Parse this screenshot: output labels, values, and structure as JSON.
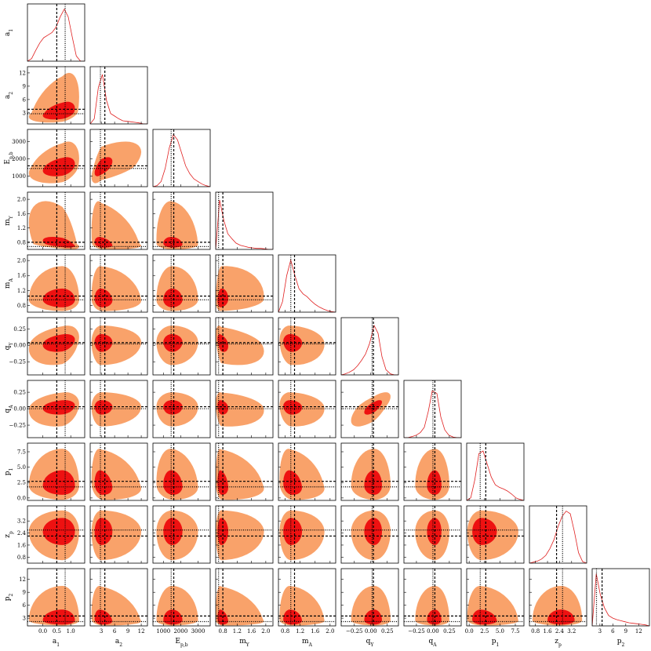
{
  "chart_data": {
    "type": "corner",
    "colors": {
      "outer": "#f9a26a",
      "inner": "#ee1111",
      "curve": "#e02020"
    },
    "params": [
      {
        "label": {
          "text": "a",
          "sub": "1"
        },
        "lim": [
          -0.55,
          1.5
        ],
        "ticks": [
          {
            "value": 0.0,
            "label": "0.0"
          },
          0.5,
          {
            "value": 1.0,
            "label": "1.0"
          }
        ],
        "ref_dashed": 0.5,
        "ref_dotted": 0.8,
        "center": 0.7,
        "inner": [
          0.7,
          0.45
        ],
        "outer": [
          1.2,
          0.6
        ],
        "pdf_x": [
          -0.55,
          -0.4,
          -0.26,
          -0.11,
          0.03,
          0.18,
          0.33,
          0.47,
          0.62,
          0.77,
          0.91,
          1.06,
          1.2,
          1.35,
          1.5
        ],
        "pdf": [
          0,
          0.05,
          0.2,
          0.35,
          0.45,
          0.5,
          0.55,
          0.65,
          0.85,
          1.0,
          0.85,
          0.45,
          0.1,
          0,
          0
        ]
      },
      {
        "label": {
          "text": "a",
          "sub": "2"
        },
        "lim": [
          0.5,
          13.4
        ],
        "ticks": [
          3,
          6,
          9,
          12
        ],
        "ref_dashed": 3.8,
        "ref_dotted": 2.8,
        "center": 3,
        "inner": [
          1.5,
          2.5
        ],
        "outer": [
          2.2,
          9
        ],
        "pdf_x": [
          0.5,
          1.42,
          2.34,
          3.26,
          4.18,
          5.1,
          6.02,
          6.94,
          7.86,
          8.78,
          9.7,
          10.6,
          11.5,
          12.5,
          13.4
        ],
        "pdf": [
          0,
          0.1,
          0.7,
          0.95,
          0.45,
          0.2,
          0.15,
          0.1,
          0.06,
          0.05,
          0.04,
          0.03,
          0.02,
          0,
          0
        ]
      },
      {
        "label": {
          "text": "E",
          "sub": "p,b"
        },
        "lim": [
          400,
          3700
        ],
        "ticks": [
          1000,
          2000,
          3000
        ],
        "ref_dashed": 1600,
        "ref_dotted": 1450,
        "center": 1500,
        "inner": [
          500,
          600
        ],
        "outer": [
          900,
          1500
        ],
        "pdf_x": [
          400,
          636,
          871,
          1107,
          1343,
          1579,
          1814,
          2050,
          2286,
          2521,
          2757,
          2993,
          3229,
          3464,
          3700
        ],
        "pdf": [
          0,
          0.02,
          0.1,
          0.35,
          0.75,
          1.0,
          0.9,
          0.65,
          0.4,
          0.25,
          0.15,
          0.1,
          0.05,
          0.02,
          0
        ]
      },
      {
        "label": {
          "text": "m",
          "sub": "Y"
        },
        "lim": [
          0.6,
          2.2
        ],
        "ticks": [
          0.8,
          1.2,
          1.6,
          {
            "value": 2.0,
            "label": "2.0"
          }
        ],
        "ref_dashed": 0.8,
        "ref_dotted": 0.68,
        "center": 0.75,
        "inner": [
          0.1,
          0.2
        ],
        "outer": [
          0.15,
          1.2
        ],
        "pdf_x": [
          0.6,
          0.71,
          0.83,
          0.94,
          1.06,
          1.17,
          1.29,
          1.4,
          1.51,
          1.63,
          1.74,
          1.86,
          1.97,
          2.09,
          2.2
        ],
        "pdf": [
          0,
          0.95,
          0.55,
          0.3,
          0.2,
          0.12,
          0.08,
          0.06,
          0.04,
          0.03,
          0.02,
          0.02,
          0.01,
          0,
          0
        ]
      },
      {
        "label": {
          "text": "m",
          "sub": "A"
        },
        "lim": [
          0.62,
          2.15
        ],
        "ticks": [
          0.8,
          1.2,
          1.6,
          {
            "value": 2.0,
            "label": "2.0"
          }
        ],
        "ref_dashed": 1.05,
        "ref_dotted": 0.95,
        "center": 0.95,
        "inner": [
          0.2,
          0.3
        ],
        "outer": [
          0.3,
          0.9
        ],
        "pdf_x": [
          0.62,
          0.73,
          0.84,
          0.95,
          1.06,
          1.17,
          1.28,
          1.38,
          1.49,
          1.6,
          1.71,
          1.82,
          1.93,
          2.04,
          2.15
        ],
        "pdf": [
          0,
          0.2,
          0.7,
          1.0,
          0.7,
          0.45,
          0.35,
          0.3,
          0.22,
          0.15,
          0.1,
          0.06,
          0.03,
          0.01,
          0
        ]
      },
      {
        "label": {
          "text": "q",
          "sub": "Y"
        },
        "lim": [
          -0.45,
          0.42
        ],
        "ticks": [
          {
            "value": -0.25,
            "label": "−0.25"
          },
          {
            "value": 0.0,
            "label": "0.00"
          },
          0.25
        ],
        "ref_dashed": 0.04,
        "ref_dotted": 0.02,
        "center": 0.05,
        "inner": [
          0.15,
          0.12
        ],
        "outer": [
          0.35,
          0.25
        ],
        "pdf_x": [
          -0.45,
          -0.39,
          -0.33,
          -0.26,
          -0.2,
          -0.14,
          -0.08,
          -0.02,
          0.05,
          0.11,
          0.17,
          0.23,
          0.3,
          0.36,
          0.42
        ],
        "pdf": [
          0,
          0.02,
          0.05,
          0.1,
          0.18,
          0.28,
          0.4,
          0.6,
          0.95,
          0.8,
          0.35,
          0.1,
          0.02,
          0,
          0
        ]
      },
      {
        "label": {
          "text": "q",
          "sub": "A"
        },
        "lim": [
          -0.44,
          0.43
        ],
        "ticks": [
          {
            "value": -0.25,
            "label": "−0.25"
          },
          {
            "value": 0.0,
            "label": "0.00"
          },
          0.25
        ],
        "ref_dashed": 0.03,
        "ref_dotted": 0.0,
        "center": 0.03,
        "inner": [
          0.12,
          0.1
        ],
        "outer": [
          0.3,
          0.22
        ],
        "pdf_x": [
          -0.44,
          -0.38,
          -0.32,
          -0.25,
          -0.19,
          -0.13,
          -0.07,
          -0.01,
          0.06,
          0.12,
          0.18,
          0.24,
          0.31,
          0.37,
          0.43
        ],
        "pdf": [
          0,
          0,
          0.02,
          0.05,
          0.1,
          0.2,
          0.5,
          0.9,
          0.85,
          0.4,
          0.15,
          0.05,
          0.01,
          0,
          0
        ]
      },
      {
        "label": {
          "text": "p",
          "sub": "1"
        },
        "lim": [
          -0.4,
          8.9
        ],
        "ticks": [
          {
            "value": 0.0,
            "label": "0.0"
          },
          2.5,
          {
            "value": 5.0,
            "label": "5.0"
          },
          7.5
        ],
        "ref_dashed": 2.7,
        "ref_dotted": 1.8,
        "center": 2.0,
        "inner": [
          1.5,
          2.5
        ],
        "outer": [
          2.3,
          6
        ],
        "pdf_x": [
          -0.4,
          0.26,
          0.93,
          1.59,
          2.26,
          2.92,
          3.59,
          4.25,
          4.91,
          5.58,
          6.24,
          6.91,
          7.57,
          8.24,
          8.9
        ],
        "pdf": [
          0,
          0.05,
          0.4,
          0.9,
          0.95,
          0.7,
          0.45,
          0.3,
          0.25,
          0.22,
          0.18,
          0.12,
          0.05,
          0.02,
          0
        ]
      },
      {
        "label": {
          "text": "z",
          "sub": "p"
        },
        "lim": [
          0.4,
          4.2
        ],
        "ticks": [
          0.8,
          1.6,
          2.4,
          3.2
        ],
        "ref_dashed": 2.2,
        "ref_dotted": 2.6,
        "center": 2.5,
        "inner": [
          0.9,
          0.9
        ],
        "outer": [
          1.9,
          1.4
        ],
        "pdf_x": [
          0.4,
          0.67,
          0.94,
          1.21,
          1.49,
          1.76,
          2.03,
          2.3,
          2.57,
          2.84,
          3.11,
          3.39,
          3.66,
          3.93,
          4.2
        ],
        "pdf": [
          0,
          0.02,
          0.04,
          0.08,
          0.15,
          0.28,
          0.45,
          0.7,
          0.9,
          1.0,
          0.95,
          0.6,
          0.2,
          0.03,
          0
        ]
      },
      {
        "label": {
          "text": "p",
          "sub": "2"
        },
        "lim": [
          1.2,
          14.5
        ],
        "ticks": [
          3,
          6,
          9,
          12
        ],
        "ref_dashed": 3.5,
        "ref_dotted": 2.2,
        "center": 2.5,
        "inner": [
          1.0,
          2.5
        ],
        "outer": [
          1.2,
          8
        ],
        "pdf_x": [
          1.2,
          2.15,
          3.1,
          4.05,
          5.0,
          5.95,
          6.9,
          7.85,
          8.8,
          9.75,
          10.7,
          11.65,
          12.6,
          13.55,
          14.5
        ],
        "pdf": [
          0,
          1.0,
          0.6,
          0.35,
          0.2,
          0.15,
          0.12,
          0.1,
          0.08,
          0.06,
          0.05,
          0.04,
          0.03,
          0.02,
          0
        ]
      }
    ],
    "correlations": [
      [
        0.4
      ],
      [
        0.35,
        0.6
      ],
      [
        -0.5,
        -0.3,
        -0.1
      ],
      [
        0,
        -0.1,
        0,
        0.1
      ],
      [
        0.3,
        0,
        0,
        -0.4,
        -0.1
      ],
      [
        0.2,
        0,
        0,
        -0.2,
        -0.1,
        0.7
      ],
      [
        0,
        -0.2,
        -0.1,
        -0.2,
        -0.2,
        0,
        0
      ],
      [
        0,
        0,
        0,
        0,
        0,
        0,
        0,
        0
      ],
      [
        0,
        -0.2,
        0,
        -0.2,
        -0.1,
        0,
        0,
        -0.1,
        0
      ]
    ]
  }
}
